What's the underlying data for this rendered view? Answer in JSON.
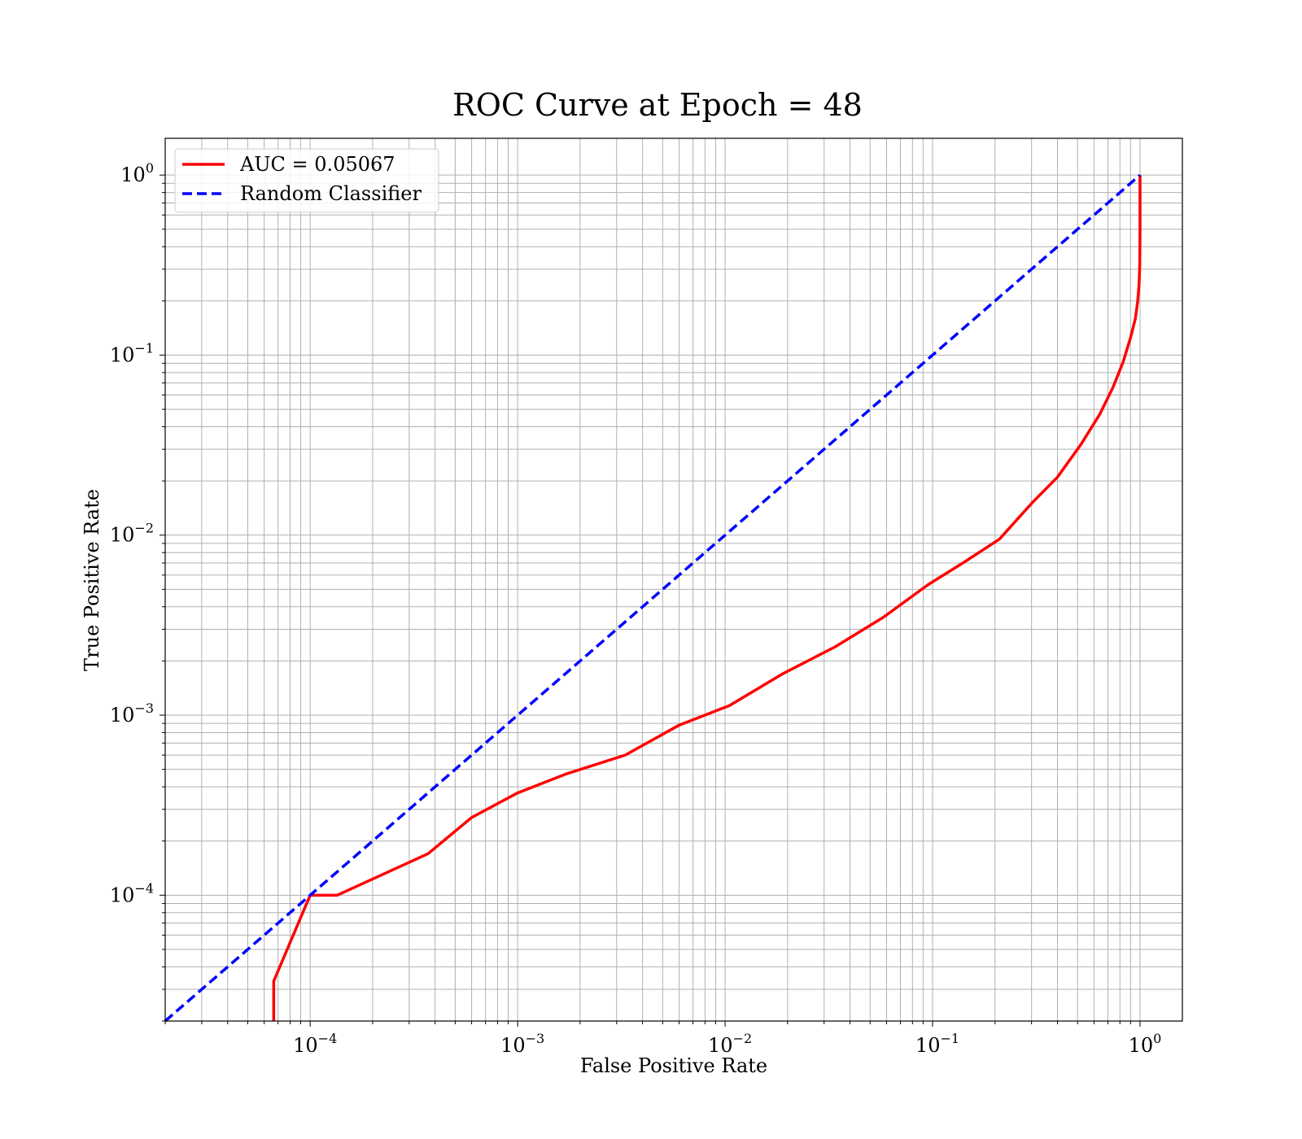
{
  "chart_data": {
    "type": "line",
    "title": "ROC Curve at Epoch = 48",
    "xlabel": "False Positive Rate",
    "ylabel": "True Positive Rate",
    "xscale": "log",
    "yscale": "log",
    "xlim": [
      2e-05,
      1.6
    ],
    "ylim": [
      2e-05,
      1.6
    ],
    "grid": "on (major and minor)",
    "legend_position": "top-left",
    "x_ticks": [
      {
        "base": "10",
        "exp": "−4",
        "value": 0.0001
      },
      {
        "base": "10",
        "exp": "−3",
        "value": 0.001
      },
      {
        "base": "10",
        "exp": "−2",
        "value": 0.01
      },
      {
        "base": "10",
        "exp": "−1",
        "value": 0.1
      },
      {
        "base": "10",
        "exp": "0",
        "value": 1
      }
    ],
    "y_ticks": [
      {
        "base": "10",
        "exp": "−4",
        "value": 0.0001
      },
      {
        "base": "10",
        "exp": "−3",
        "value": 0.001
      },
      {
        "base": "10",
        "exp": "−2",
        "value": 0.01
      },
      {
        "base": "10",
        "exp": "−1",
        "value": 0.1
      },
      {
        "base": "10",
        "exp": "0",
        "value": 1
      }
    ],
    "series": [
      {
        "name": "AUC = 0.05067",
        "color": "#ff0000",
        "style": "solid",
        "x": [
          6.67e-05,
          6.67e-05,
          0.0001,
          0.000135,
          0.00037,
          0.0006,
          0.001,
          0.0017,
          0.0033,
          0.006,
          0.0105,
          0.019,
          0.034,
          0.058,
          0.095,
          0.14,
          0.21,
          0.3,
          0.4,
          0.52,
          0.64,
          0.74,
          0.83,
          0.9,
          0.95,
          0.975,
          0.99,
          0.997,
          1.0,
          1.0
        ],
        "y": [
          2e-05,
          3.33e-05,
          0.0001,
          0.0001,
          0.00017,
          0.00027,
          0.00037,
          0.00047,
          0.0006,
          0.00088,
          0.00113,
          0.0017,
          0.0024,
          0.0035,
          0.0053,
          0.007,
          0.0095,
          0.015,
          0.021,
          0.032,
          0.047,
          0.066,
          0.092,
          0.125,
          0.16,
          0.2,
          0.25,
          0.32,
          0.5,
          1.0
        ]
      },
      {
        "name": "Random Classifier",
        "color": "#0000ff",
        "style": "dashed",
        "x": [
          2e-05,
          1.0
        ],
        "y": [
          2e-05,
          1.0
        ]
      }
    ]
  }
}
